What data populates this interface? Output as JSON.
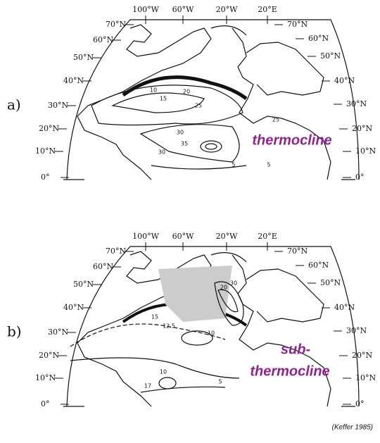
{
  "panels": [
    {
      "label": "a)",
      "lon_labels": [
        "100°W",
        "60°W",
        "20°W",
        "20°E"
      ],
      "lat_labels_left": [
        "70°N",
        "60°N",
        "50°N",
        "40°N",
        "30°N",
        "20°N",
        "10°N",
        "0°"
      ],
      "lat_labels_right": [
        "70°N",
        "60°N",
        "50°N",
        "40°N",
        "30°N",
        "20°N",
        "10°N",
        "0°"
      ],
      "contour_labels": [
        "10",
        "15",
        "20",
        "25",
        "25",
        "30",
        "30",
        "35",
        "5",
        "5"
      ],
      "annotation": [
        "thermocline"
      ]
    },
    {
      "label": "b)",
      "lon_labels": [
        "100°W",
        "60°W",
        "20°W",
        "20°E"
      ],
      "lat_labels_left": [
        "70°N",
        "60°N",
        "50°N",
        "40°N",
        "30°N",
        "20°N",
        "10°N",
        "0°"
      ],
      "lat_labels_right": [
        "70°N",
        "60°N",
        "50°N",
        "40°N",
        "30°N",
        "20°N",
        "10°N",
        "0°"
      ],
      "contour_labels": [
        "15",
        "12.5",
        "10",
        "20",
        "30",
        "10",
        "17",
        "5"
      ],
      "annotation": [
        "sub-",
        "thermocline"
      ]
    }
  ],
  "credit": "(Keffer 1985)"
}
